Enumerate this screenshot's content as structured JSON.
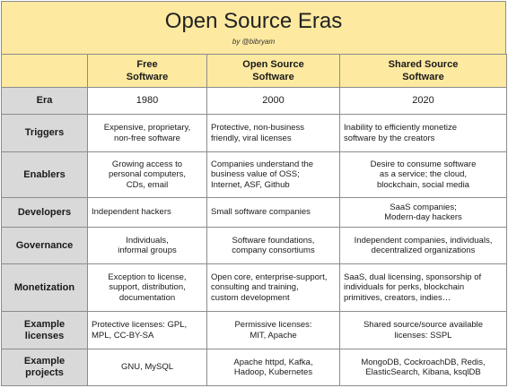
{
  "title": "Open Source Eras",
  "byline": "by @bibryam",
  "columns": [
    "Free\nSoftware",
    "Open Source\nSoftware",
    "Shared Source\nSoftware"
  ],
  "rows": [
    {
      "label": "Era",
      "cells": [
        "1980",
        "2000",
        "2020"
      ]
    },
    {
      "label": "Triggers",
      "cells": [
        "Expensive, proprietary,\nnon-free software",
        "Protective, non-business\nfriendly, viral licenses",
        "Inability to efficiently monetize\nsoftware by the creators"
      ]
    },
    {
      "label": "Enablers",
      "cells": [
        "Growing access to\npersonal computers,\nCDs, email",
        "Companies understand the\nbusiness value of OSS;\nInternet, ASF, Github",
        "Desire to consume software\nas a service; the cloud,\nblockchain, social media"
      ]
    },
    {
      "label": "Developers",
      "cells": [
        "Independent hackers",
        "Small software companies",
        "SaaS companies;\nModern-day hackers"
      ]
    },
    {
      "label": "Governance",
      "cells": [
        "Individuals,\ninformal groups",
        "Software foundations,\ncompany consortiums",
        "Independent companies, individuals,\ndecentralized organizations"
      ]
    },
    {
      "label": "Monetization",
      "cells": [
        "Exception to license,\nsupport, distribution,\ndocumentation",
        "Open core, enterprise-support,\nconsulting and training,\ncustom development",
        "SaaS, dual licensing, sponsorship of\nindividuals for perks, blockchain\nprimitives, creators, indies…"
      ]
    },
    {
      "label": "Example\nlicenses",
      "cells": [
        "Protective licenses: GPL,\nMPL, CC-BY-SA",
        "Permissive licenses:\nMIT, Apache",
        "Shared source/source available\nlicenses: SSPL"
      ]
    },
    {
      "label": "Example\nprojects",
      "cells": [
        "GNU, MySQL",
        "Apache httpd, Kafka,\nHadoop, Kubernetes",
        "MongoDB, CockroachDB, Redis,\nElasticSearch, Kibana, ksqlDB"
      ]
    }
  ]
}
